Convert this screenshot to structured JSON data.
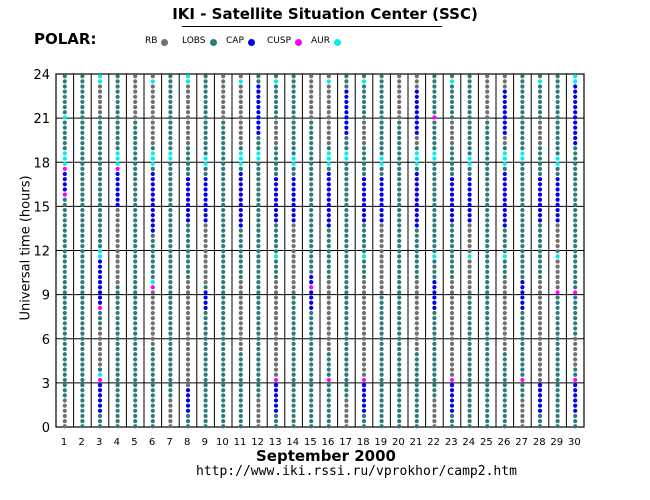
{
  "header": {
    "title": "IKI - Satellite Situation Center (SSC)",
    "satellite": "POLAR:"
  },
  "legend": [
    {
      "label": "RB",
      "color": "#707070"
    },
    {
      "label": "LOBS",
      "color": "#2e7b7b"
    },
    {
      "label": "CAP",
      "color": "#0000ee"
    },
    {
      "label": "CUSP",
      "color": "#ff00ff"
    },
    {
      "label": "AUR",
      "color": "#00eeee"
    }
  ],
  "footer": {
    "xlabel": "September    2000",
    "url": "http://www.iki.rssi.ru/vprokhor/camp2.htm"
  },
  "chart_data": {
    "type": "scatter",
    "title": "IKI - Satellite Situation Center (SSC)",
    "xlabel": "September 2000",
    "ylabel": "Universal time (hours)",
    "x": [
      1,
      2,
      3,
      4,
      5,
      6,
      7,
      8,
      9,
      10,
      11,
      12,
      13,
      14,
      15,
      16,
      17,
      18,
      19,
      20,
      21,
      22,
      23,
      24,
      25,
      26,
      27,
      28,
      29,
      30
    ],
    "ylim": [
      0,
      24
    ],
    "yticks": [
      0,
      3,
      6,
      9,
      12,
      15,
      18,
      21,
      24
    ],
    "xticks": [
      "1",
      "2",
      "3",
      "4",
      "5",
      "6",
      "7",
      "8",
      "9",
      "10",
      "11",
      "12",
      "13",
      "14",
      "15",
      "16",
      "17",
      "18",
      "19",
      "20",
      "21",
      "22",
      "23",
      "24",
      "25",
      "26",
      "27",
      "28",
      "29",
      "30"
    ],
    "grid": true,
    "legend_position": "top",
    "series": [
      {
        "name": "RB",
        "color": "#707070"
      },
      {
        "name": "LOBS",
        "color": "#2e7b7b"
      },
      {
        "name": "CAP",
        "color": "#0000ee"
      },
      {
        "name": "CUSP",
        "color": "#ff00ff"
      },
      {
        "name": "AUR",
        "color": "#00eeee"
      }
    ],
    "days": [
      {
        "day": 1,
        "rb": [
          [
            0,
            2
          ]
        ],
        "cap": [
          [
            15.5,
            17.3
          ]
        ],
        "cusp": [
          [
            15.5,
            15.9
          ],
          [
            17.3,
            17.6
          ]
        ],
        "aur": [
          [
            17.7,
            18.6
          ],
          [
            21.0,
            21.4
          ]
        ]
      },
      {
        "day": 2,
        "rb": [],
        "cap": [],
        "cusp": [],
        "aur": []
      },
      {
        "day": 3,
        "rb": [
          [
            4,
            7
          ],
          [
            21.3,
            24
          ]
        ],
        "cap": [
          [
            0.8,
            3.0
          ],
          [
            8.3,
            11.4
          ]
        ],
        "cusp": [
          [
            3.1,
            3.3
          ],
          [
            8.0,
            8.3
          ]
        ],
        "aur": [
          [
            3.4,
            3.7
          ],
          [
            11.5,
            12.0
          ],
          [
            23.4,
            23.9
          ]
        ]
      },
      {
        "day": 4,
        "rb": [
          [
            9.5,
            15
          ]
        ],
        "cap": [
          [
            15,
            17.4
          ]
        ],
        "cusp": [
          [
            17.5,
            17.7
          ]
        ],
        "aur": [
          [
            17.8,
            18.6
          ]
        ]
      },
      {
        "day": 5,
        "rb": [
          [
            21,
            24
          ]
        ],
        "cap": [],
        "cusp": [],
        "aur": []
      },
      {
        "day": 6,
        "rb": [
          [
            5.5,
            10
          ],
          [
            19,
            24
          ]
        ],
        "cap": [
          [
            13,
            17.5
          ]
        ],
        "cusp": [
          [
            9.3,
            9.5
          ],
          [
            17.6,
            17.8
          ]
        ],
        "aur": [
          [
            9.6,
            10
          ],
          [
            17.9,
            18.8
          ],
          [
            23.2,
            23.8
          ]
        ]
      },
      {
        "day": 7,
        "rb": [
          [
            0,
            2
          ]
        ],
        "cap": [],
        "cusp": [],
        "aur": [
          [
            18,
            18.6
          ]
        ]
      },
      {
        "day": 8,
        "rb": [
          [
            2.5,
            10
          ],
          [
            19,
            24
          ]
        ],
        "cap": [
          [
            0.8,
            2.8
          ],
          [
            14,
            17
          ]
        ],
        "cusp": [
          [
            3.0,
            3.2
          ],
          [
            21.2,
            21.4
          ]
        ],
        "aur": [
          [
            23.3,
            23.9
          ]
        ]
      },
      {
        "day": 9,
        "rb": [
          [
            9.5,
            14
          ]
        ],
        "cap": [
          [
            8,
            9.2
          ],
          [
            14,
            17
          ]
        ],
        "cusp": [
          [
            9.2,
            9.4
          ]
        ],
        "aur": [
          [
            17.8,
            18.5
          ]
        ]
      },
      {
        "day": 10,
        "rb": [
          [
            21,
            24
          ]
        ],
        "cap": [],
        "cusp": [],
        "aur": []
      },
      {
        "day": 11,
        "rb": [
          [
            5,
            10
          ],
          [
            19,
            24
          ]
        ],
        "cap": [
          [
            13.5,
            17.5
          ]
        ],
        "cusp": [],
        "aur": [
          [
            17.8,
            18.8
          ],
          [
            23.3,
            23.8
          ]
        ]
      },
      {
        "day": 12,
        "rb": [
          [
            0,
            2
          ]
        ],
        "cap": [
          [
            20,
            23.5
          ]
        ],
        "cusp": [],
        "aur": [
          [
            18,
            18.6
          ]
        ]
      },
      {
        "day": 13,
        "rb": [
          [
            3,
            10
          ],
          [
            19,
            21
          ]
        ],
        "cap": [
          [
            1,
            3
          ],
          [
            14,
            17
          ]
        ],
        "cusp": [
          [
            3.1,
            3.3
          ],
          [
            21.2,
            21.4
          ]
        ],
        "aur": [
          [
            11.3,
            11.9
          ],
          [
            23.3,
            23.8
          ]
        ]
      },
      {
        "day": 14,
        "rb": [
          [
            9,
            14
          ]
        ],
        "cap": [
          [
            14,
            17
          ]
        ],
        "cusp": [],
        "aur": [
          [
            17.8,
            18.5
          ]
        ]
      },
      {
        "day": 15,
        "rb": [
          [
            21,
            24
          ]
        ],
        "cap": [
          [
            8,
            10.3
          ]
        ],
        "cusp": [
          [
            9.3,
            9.5
          ]
        ],
        "aur": []
      },
      {
        "day": 16,
        "rb": [
          [
            5,
            10
          ],
          [
            19,
            24
          ]
        ],
        "cap": [
          [
            13.5,
            17.5
          ]
        ],
        "cusp": [
          [
            3.1,
            3.3
          ]
        ],
        "aur": [
          [
            17.8,
            18.8
          ],
          [
            23.3,
            23.8
          ]
        ]
      },
      {
        "day": 17,
        "rb": [
          [
            0,
            2
          ]
        ],
        "cap": [
          [
            20,
            23
          ]
        ],
        "cusp": [],
        "aur": [
          [
            18,
            18.6
          ]
        ]
      },
      {
        "day": 18,
        "rb": [
          [
            3,
            10
          ],
          [
            19,
            21
          ]
        ],
        "cap": [
          [
            1,
            3
          ],
          [
            14,
            17
          ]
        ],
        "cusp": [
          [
            3.1,
            3.3
          ],
          [
            21.2,
            21.4
          ]
        ],
        "aur": [
          [
            11.3,
            11.9
          ],
          [
            23.3,
            23.8
          ]
        ]
      },
      {
        "day": 19,
        "rb": [
          [
            9,
            14
          ]
        ],
        "cap": [
          [
            14,
            17
          ]
        ],
        "cusp": [],
        "aur": [
          [
            17.8,
            18.5
          ]
        ]
      },
      {
        "day": 20,
        "rb": [
          [
            21,
            24
          ]
        ],
        "cap": [],
        "cusp": [],
        "aur": []
      },
      {
        "day": 21,
        "rb": [
          [
            5,
            10
          ],
          [
            19,
            24
          ]
        ],
        "cap": [
          [
            13.5,
            17.5
          ],
          [
            20,
            23
          ]
        ],
        "cusp": [],
        "aur": [
          [
            17.8,
            18.8
          ]
        ]
      },
      {
        "day": 22,
        "rb": [
          [
            0,
            2
          ]
        ],
        "cap": [
          [
            8,
            10
          ]
        ],
        "cusp": [
          [
            21,
            21.3
          ]
        ],
        "aur": [
          [
            11.3,
            11.9
          ],
          [
            18,
            18.6
          ]
        ]
      },
      {
        "day": 23,
        "rb": [
          [
            3,
            10
          ],
          [
            19,
            21
          ]
        ],
        "cap": [
          [
            1,
            3
          ],
          [
            14,
            17
          ]
        ],
        "cusp": [
          [
            3.1,
            3.3
          ],
          [
            21.2,
            21.4
          ]
        ],
        "aur": [
          [
            23.3,
            23.8
          ]
        ]
      },
      {
        "day": 24,
        "rb": [
          [
            9,
            14
          ]
        ],
        "cap": [
          [
            14,
            17
          ]
        ],
        "cusp": [],
        "aur": [
          [
            11.3,
            11.9
          ],
          [
            17.8,
            18.5
          ]
        ]
      },
      {
        "day": 25,
        "rb": [
          [
            21,
            24
          ]
        ],
        "cap": [],
        "cusp": [],
        "aur": []
      },
      {
        "day": 26,
        "rb": [
          [
            5,
            10
          ],
          [
            19,
            24
          ]
        ],
        "cap": [
          [
            13.5,
            17.5
          ],
          [
            20,
            23
          ]
        ],
        "cusp": [],
        "aur": [
          [
            11.3,
            11.9
          ],
          [
            17.8,
            18.8
          ]
        ]
      },
      {
        "day": 27,
        "rb": [
          [
            0,
            2
          ]
        ],
        "cap": [
          [
            8,
            10
          ]
        ],
        "cusp": [
          [
            3.1,
            3.3
          ]
        ],
        "aur": [
          [
            18,
            18.6
          ]
        ]
      },
      {
        "day": 28,
        "rb": [
          [
            3,
            10
          ],
          [
            19,
            21
          ]
        ],
        "cap": [
          [
            1,
            3
          ],
          [
            14,
            17
          ]
        ],
        "cusp": [
          [
            17.2,
            17.5
          ],
          [
            21.2,
            21.4
          ]
        ],
        "aur": [
          [
            23.3,
            23.8
          ]
        ]
      },
      {
        "day": 29,
        "rb": [
          [
            9,
            14
          ]
        ],
        "cap": [
          [
            14,
            17
          ]
        ],
        "cusp": [
          [
            9.1,
            9.4
          ]
        ],
        "aur": [
          [
            11.3,
            11.9
          ],
          [
            17.8,
            18.5
          ]
        ]
      },
      {
        "day": 30,
        "rb": [
          [
            4,
            6
          ]
        ],
        "cap": [
          [
            0.8,
            3
          ],
          [
            19,
            23.5
          ]
        ],
        "cusp": [
          [
            3.1,
            3.3
          ],
          [
            8.8,
            9.2
          ]
        ],
        "aur": [
          [
            23.3,
            23.9
          ]
        ]
      }
    ]
  }
}
